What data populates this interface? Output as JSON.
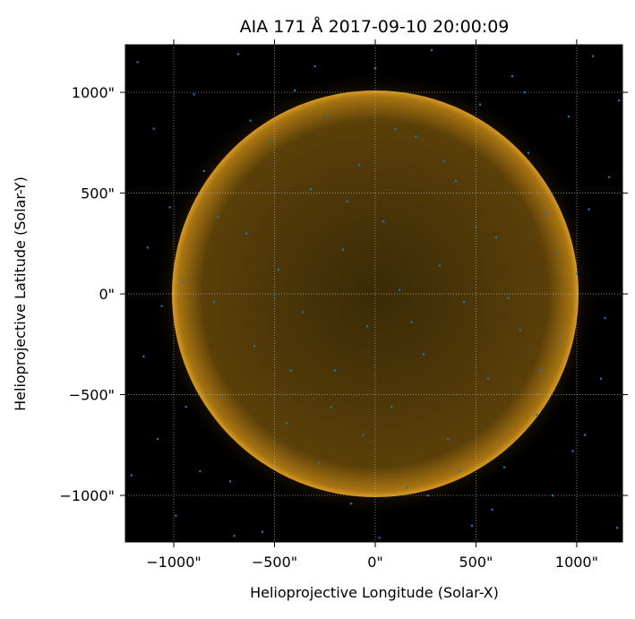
{
  "chart_data": {
    "type": "scatter",
    "title": "AIA 171 Å 2017-09-10 20:00:09",
    "x_label": "Helioprojective Longitude (Solar-X)",
    "y_label": "Helioprojective Latitude (Solar-Y)",
    "xlim": [
      -1240,
      1227
    ],
    "ylim": [
      -1231,
      1236
    ],
    "xticks": [
      {
        "value": -1000,
        "label": "−1000\""
      },
      {
        "value": -500,
        "label": "−500\""
      },
      {
        "value": 0,
        "label": "0\""
      },
      {
        "value": 500,
        "label": "500\""
      },
      {
        "value": 1000,
        "label": "1000\""
      }
    ],
    "yticks": [
      {
        "value": -1000,
        "label": "−1000\""
      },
      {
        "value": -500,
        "label": "−500\""
      },
      {
        "value": 0,
        "label": "0\""
      },
      {
        "value": 500,
        "label": "500\""
      },
      {
        "value": 1000,
        "label": "1000\""
      }
    ],
    "grid": true,
    "color": "#1f77b4",
    "x": [
      -1180,
      -1100,
      -1020,
      -960,
      -1150,
      -1080,
      -990,
      -900,
      -850,
      -800,
      -760,
      -720,
      -680,
      -640,
      -600,
      -560,
      -520,
      -480,
      -440,
      -400,
      -360,
      -320,
      -280,
      -240,
      -200,
      -160,
      -120,
      -80,
      -40,
      0,
      40,
      80,
      120,
      160,
      200,
      240,
      280,
      320,
      360,
      400,
      440,
      480,
      520,
      560,
      600,
      640,
      680,
      720,
      760,
      800,
      840,
      880,
      920,
      960,
      1000,
      1040,
      1080,
      1120,
      1160,
      1200,
      -1210,
      -1130,
      -1060,
      -940,
      -870,
      -780,
      -700,
      -620,
      -500,
      -420,
      -300,
      -220,
      -140,
      -60,
      20,
      100,
      180,
      260,
      340,
      420,
      500,
      580,
      660,
      740,
      820,
      900,
      980,
      1060,
      1140,
      1210
    ],
    "y": [
      1150,
      820,
      430,
      60,
      -310,
      -720,
      -1100,
      990,
      610,
      -40,
      -520,
      -930,
      1190,
      300,
      -260,
      -1180,
      760,
      120,
      -640,
      1010,
      -90,
      520,
      -840,
      880,
      -380,
      220,
      -1040,
      640,
      -160,
      1120,
      360,
      -560,
      20,
      -960,
      780,
      -300,
      1210,
      140,
      -720,
      560,
      -40,
      -1150,
      940,
      -420,
      280,
      -860,
      1080,
      -180,
      700,
      -600,
      400,
      -1000,
      -240,
      880,
      100,
      -700,
      1180,
      -420,
      580,
      -1160,
      -900,
      230,
      -60,
      -560,
      -880,
      380,
      -1200,
      860,
      -20,
      -380,
      1130,
      -560,
      460,
      -700,
      -1210,
      820,
      -140,
      -1000,
      660,
      -880,
      330,
      -1070,
      -20,
      1000,
      -380,
      200,
      -780,
      420,
      -120,
      960
    ]
  }
}
